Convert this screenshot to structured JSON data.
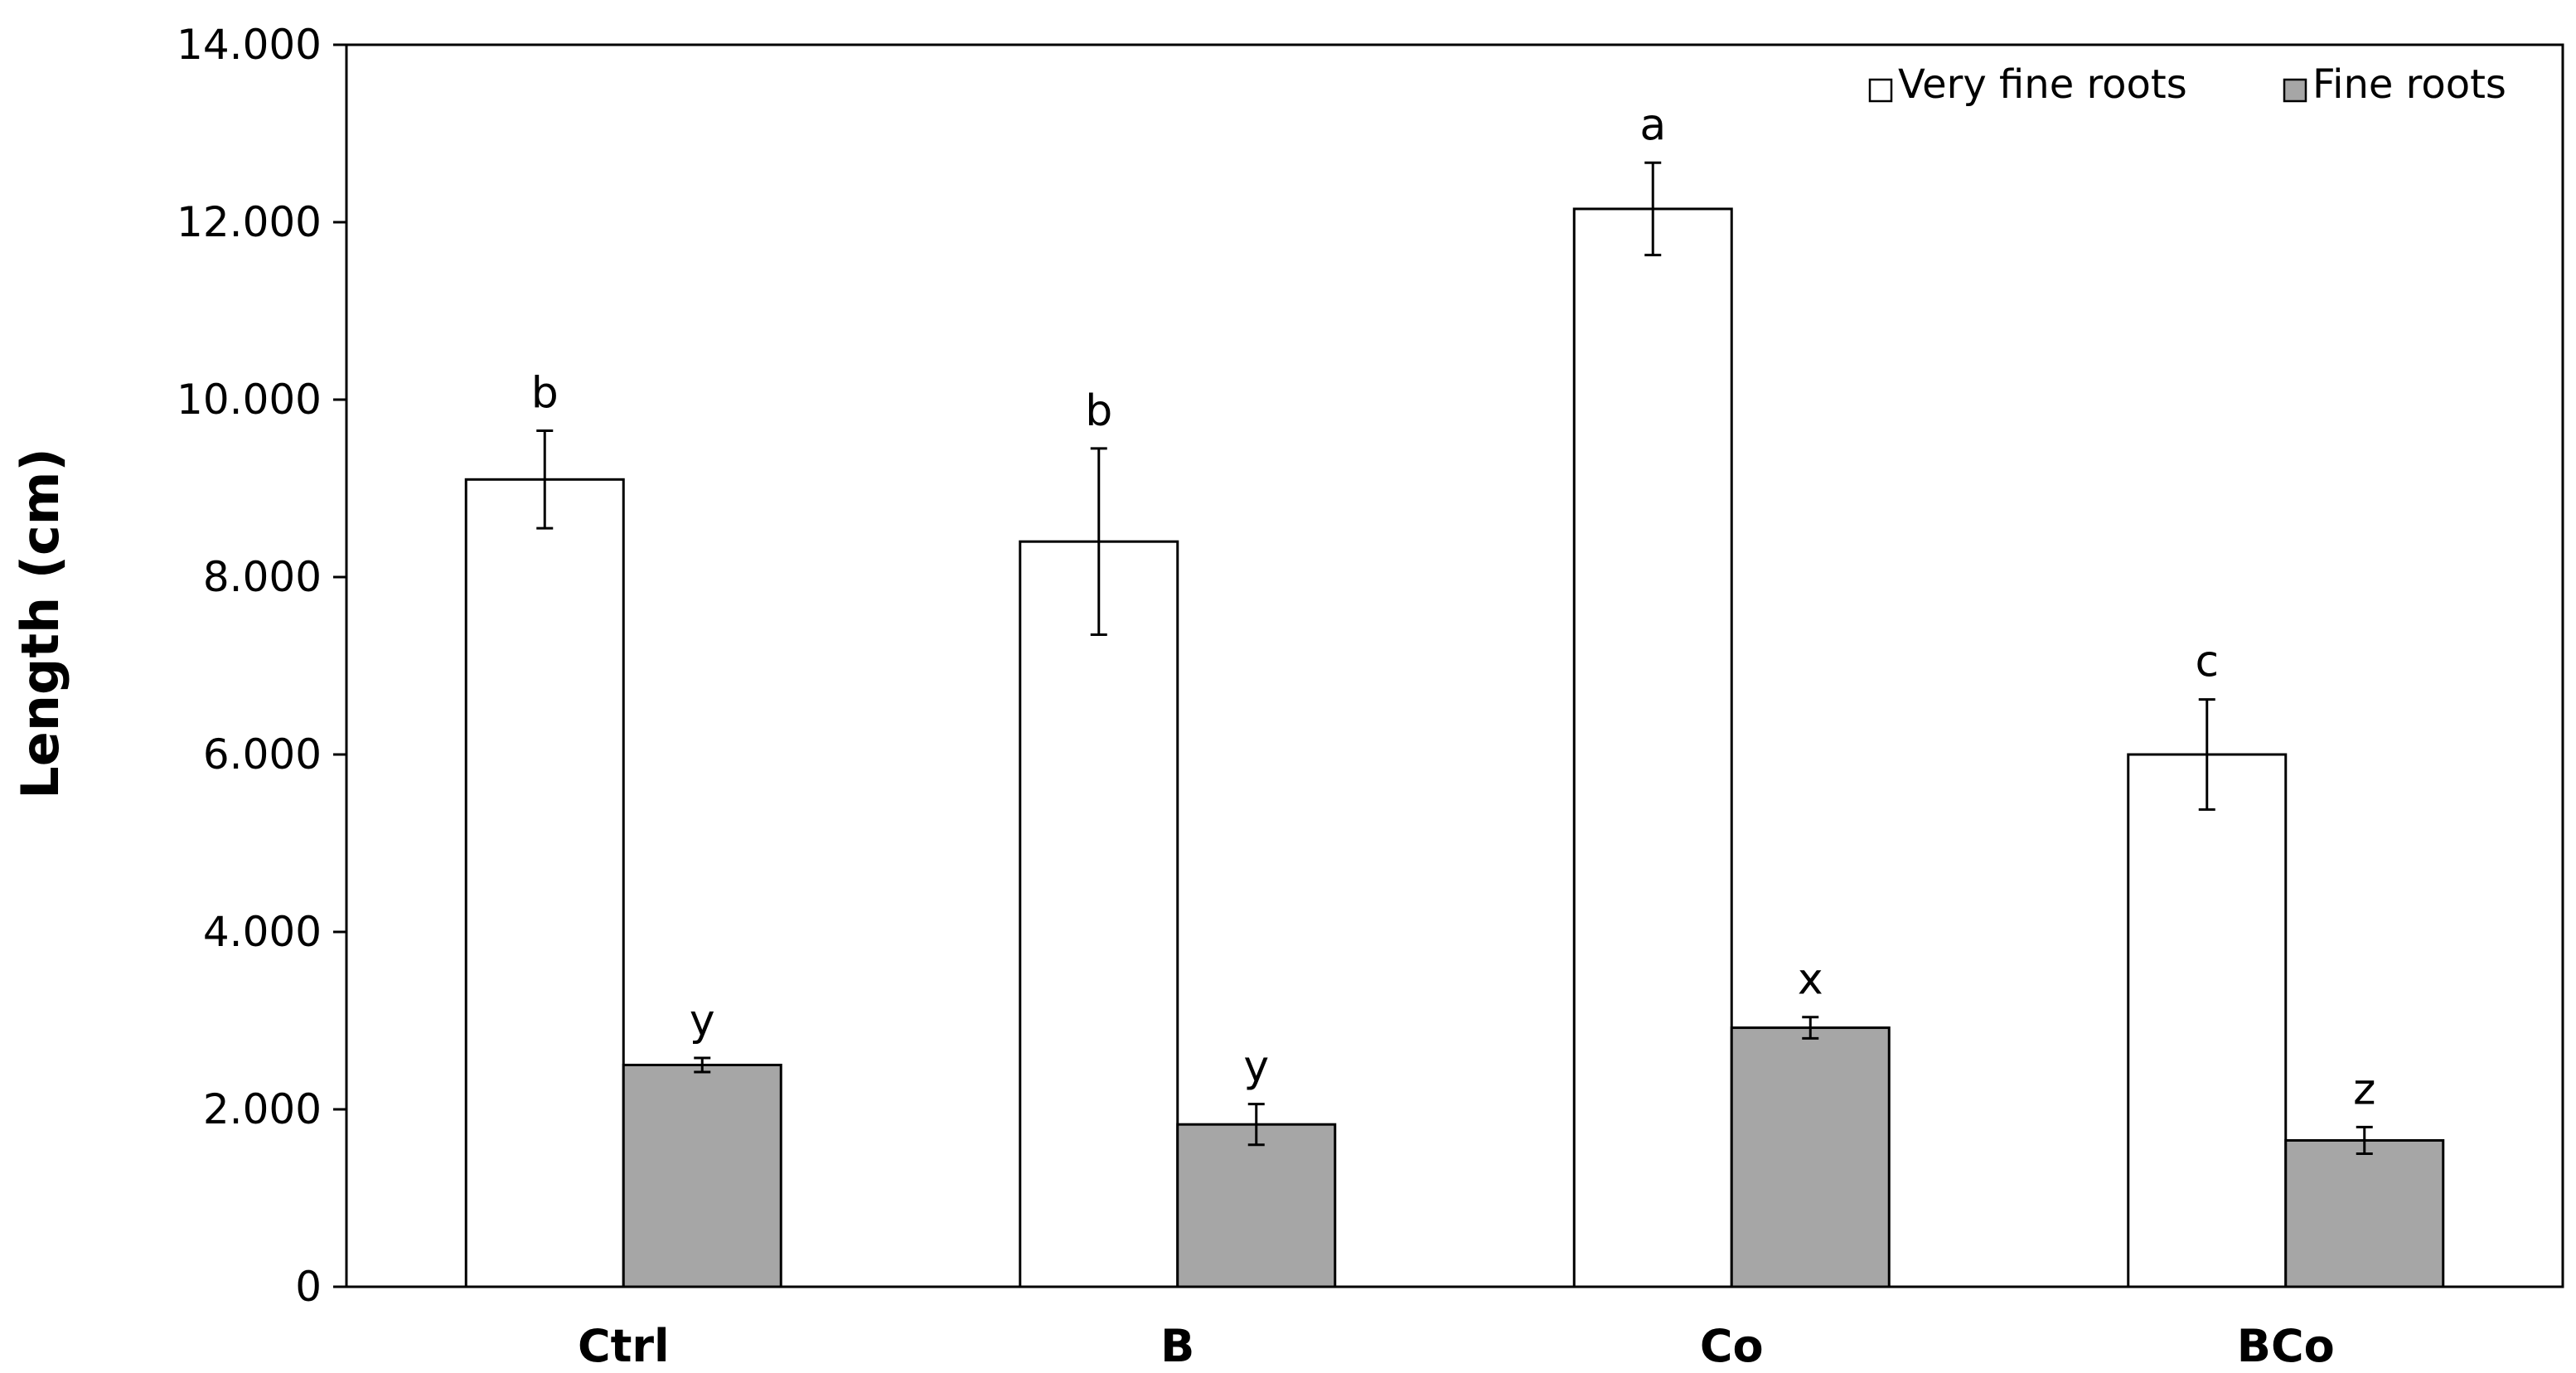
{
  "chart_data": {
    "type": "bar",
    "ylabel": "Length (cm)",
    "ylim": [
      0,
      14000
    ],
    "yticks": [
      0,
      2000,
      4000,
      6000,
      8000,
      10000,
      12000,
      14000
    ],
    "ytick_labels": [
      "0",
      "2.000",
      "4.000",
      "6.000",
      "8.000",
      "10.000",
      "12.000",
      "14.000"
    ],
    "categories": [
      "Ctrl",
      "B",
      "Co",
      "BCo"
    ],
    "grid": false,
    "legend_position": "top-right",
    "series": [
      {
        "name": "Very fine roots",
        "color": "#ffffff",
        "values": [
          9100,
          8400,
          12150,
          6000
        ],
        "errors": [
          550,
          1050,
          520,
          620
        ],
        "letters": [
          "b",
          "b",
          "a",
          "c"
        ]
      },
      {
        "name": "Fine roots",
        "color": "#a6a6a6",
        "values": [
          2500,
          1830,
          2920,
          1650
        ],
        "errors": [
          80,
          230,
          120,
          150
        ],
        "letters": [
          "y",
          "y",
          "x",
          "z"
        ]
      }
    ]
  }
}
